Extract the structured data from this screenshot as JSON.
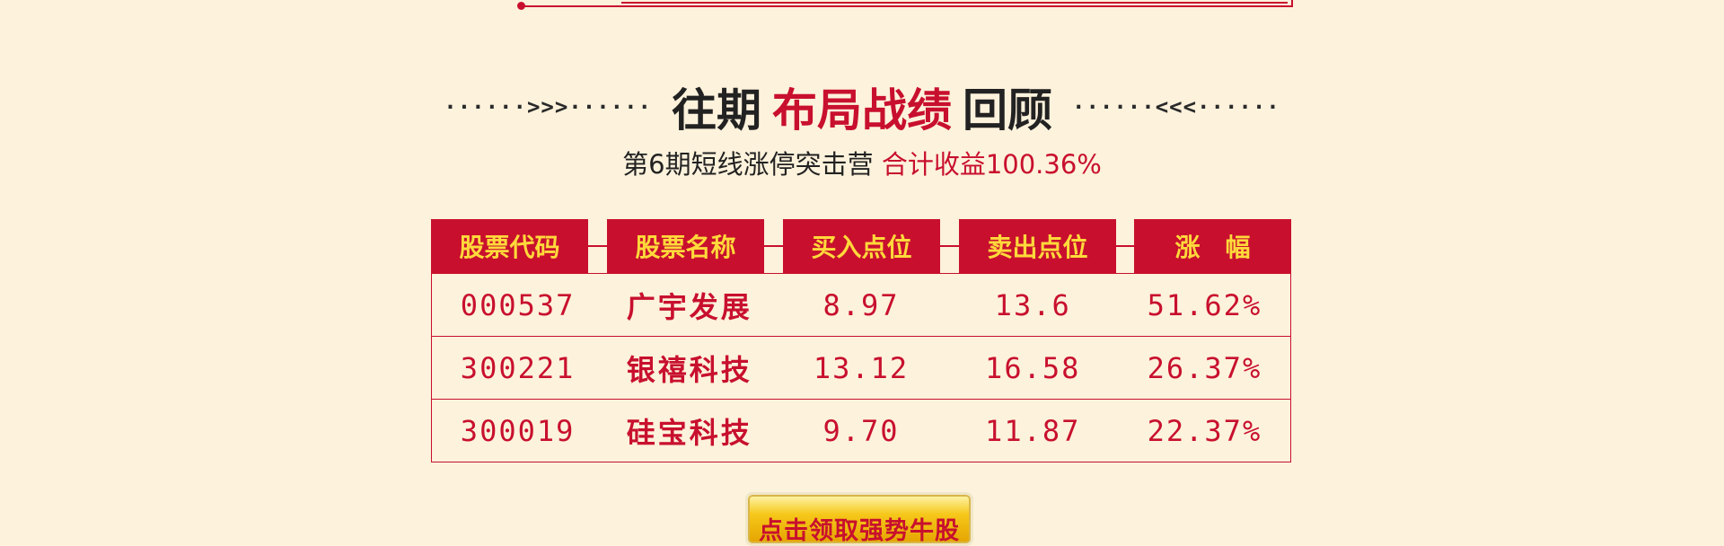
{
  "header": {
    "deco_left": "······>>>······",
    "title_part1": "往期",
    "title_part2": "布局战绩",
    "title_part3": "回顾",
    "deco_right": "······<<<······",
    "subtitle_prefix": "第6期短线涨停突击营",
    "subtitle_highlight": "合计收益100.36%"
  },
  "table": {
    "columns": [
      "股票代码",
      "股票名称",
      "买入点位",
      "卖出点位",
      "涨　幅"
    ],
    "rows": [
      [
        "000537",
        "广宇发展",
        "8.97",
        "13.6",
        "51.62%"
      ],
      [
        "300221",
        "银禧科技",
        "13.12",
        "16.58",
        "26.37%"
      ],
      [
        "300019",
        "硅宝科技",
        "9.70",
        "11.87",
        "22.37%"
      ]
    ]
  },
  "cta": {
    "label": "点击领取强势牛股"
  },
  "colors": {
    "background": "#fdf2dc",
    "accent_red": "#c8102e",
    "header_text_yellow": "#ffd93b"
  }
}
